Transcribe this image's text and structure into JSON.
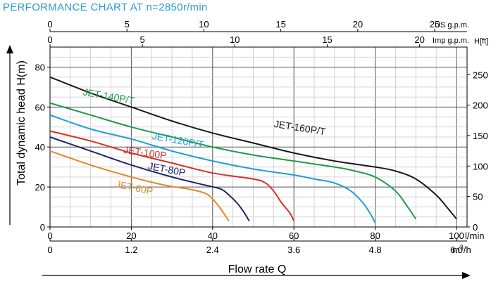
{
  "page": {
    "title": "PERFORMANCE CHART AT n=2850r/min",
    "title_color": "#2b9bd6"
  },
  "chart_data": {
    "type": "line",
    "title": "PERFORMANCE CHART AT n=2850r/min",
    "xlabel": "Flow rate Q",
    "ylabel": "Total dynamic head H(m)",
    "xlim": [
      0,
      100
    ],
    "ylim": [
      0,
      90
    ],
    "grid": true,
    "primary_x_axis": {
      "unit": "l/min",
      "ticks": [
        0,
        20,
        40,
        60,
        80,
        100
      ],
      "tick_labels": [
        "0",
        "20",
        "40",
        "60",
        "80",
        "100"
      ]
    },
    "bottom_x_axis": {
      "unit": "m³/h",
      "ticks": [
        0,
        1.2,
        2.4,
        3.6,
        4.8,
        6.0
      ],
      "tick_labels": [
        "0",
        "1.2",
        "2.4",
        "3.6",
        "4.8",
        "6.0"
      ]
    },
    "top_x_axis_us": {
      "unit": "US g.p.m.",
      "ticks": [
        0,
        5,
        10,
        15,
        20,
        25
      ],
      "tick_labels": [
        "0",
        "5",
        "10",
        "15",
        "20",
        "25"
      ]
    },
    "top_x_axis_imp": {
      "unit": "Imp g.p.m.",
      "ticks": [
        0,
        5,
        10,
        15,
        20
      ],
      "tick_labels": [
        "0",
        "5",
        "10",
        "15",
        "20"
      ]
    },
    "y_axis_m": {
      "ticks": [
        0,
        20,
        40,
        60,
        80
      ],
      "tick_labels": [
        "0",
        "20",
        "40",
        "60",
        "80"
      ]
    },
    "y_axis_ft": {
      "unit": "H[ft]",
      "ticks": [
        0,
        50,
        100,
        150,
        200,
        250
      ],
      "tick_labels": [
        "0",
        "50",
        "100",
        "150",
        "200",
        "250"
      ]
    },
    "series": [
      {
        "name": "JET-160P/T",
        "color": "#1a1a1a",
        "points": [
          [
            0,
            75
          ],
          [
            10,
            67
          ],
          [
            20,
            60
          ],
          [
            30,
            53
          ],
          [
            40,
            47
          ],
          [
            50,
            42
          ],
          [
            60,
            37
          ],
          [
            70,
            33
          ],
          [
            80,
            30
          ],
          [
            85,
            28
          ],
          [
            90,
            24
          ],
          [
            95,
            16
          ],
          [
            98,
            9
          ],
          [
            100,
            4
          ]
        ]
      },
      {
        "name": "JET-140P/T",
        "color": "#1e9b4c",
        "points": [
          [
            0,
            62
          ],
          [
            10,
            56
          ],
          [
            20,
            50
          ],
          [
            30,
            45
          ],
          [
            40,
            40
          ],
          [
            50,
            36
          ],
          [
            60,
            33
          ],
          [
            70,
            30
          ],
          [
            75,
            28
          ],
          [
            80,
            25
          ],
          [
            85,
            18
          ],
          [
            88,
            10
          ],
          [
            90,
            4
          ]
        ]
      },
      {
        "name": "JET-120P/T",
        "color": "#1f9fd3",
        "points": [
          [
            0,
            56
          ],
          [
            10,
            49
          ],
          [
            20,
            44
          ],
          [
            30,
            38
          ],
          [
            40,
            33
          ],
          [
            50,
            29
          ],
          [
            60,
            26
          ],
          [
            65,
            24
          ],
          [
            70,
            22
          ],
          [
            74,
            18
          ],
          [
            77,
            12
          ],
          [
            79,
            6
          ],
          [
            80,
            2
          ]
        ]
      },
      {
        "name": "JET-100P",
        "color": "#d33227",
        "points": [
          [
            0,
            48
          ],
          [
            10,
            43
          ],
          [
            20,
            37
          ],
          [
            30,
            32
          ],
          [
            40,
            27
          ],
          [
            50,
            24
          ],
          [
            53,
            22
          ],
          [
            55,
            18
          ],
          [
            57,
            12
          ],
          [
            59,
            7
          ],
          [
            60,
            3
          ]
        ]
      },
      {
        "name": "JET-80P",
        "color": "#222468",
        "points": [
          [
            0,
            45
          ],
          [
            10,
            38
          ],
          [
            20,
            31
          ],
          [
            30,
            25
          ],
          [
            38,
            21
          ],
          [
            42,
            19
          ],
          [
            44,
            16
          ],
          [
            46,
            12
          ],
          [
            47.5,
            8
          ],
          [
            49,
            3
          ]
        ]
      },
      {
        "name": "JET-60P",
        "color": "#e2872a",
        "points": [
          [
            0,
            38
          ],
          [
            10,
            31
          ],
          [
            20,
            25
          ],
          [
            28,
            21
          ],
          [
            34,
            19
          ],
          [
            38,
            17
          ],
          [
            40,
            14
          ],
          [
            42,
            9
          ],
          [
            44,
            3
          ]
        ]
      }
    ],
    "annotations": [
      {
        "text": "JET-160P/T",
        "x": 55,
        "y": 50,
        "color": "#1a1a1a"
      },
      {
        "text": "JET-140P/T",
        "x": 8,
        "y": 66,
        "color": "#1e9b4c"
      },
      {
        "text": "JET-120P/T",
        "x": 25,
        "y": 44,
        "color": "#1f9fd3"
      },
      {
        "text": "JET-100P",
        "x": 18,
        "y": 37,
        "color": "#d33227"
      },
      {
        "text": "JET-80P",
        "x": 24,
        "y": 29,
        "color": "#222468"
      },
      {
        "text": "JET-60P",
        "x": 16,
        "y": 20,
        "color": "#e2872a"
      }
    ]
  }
}
